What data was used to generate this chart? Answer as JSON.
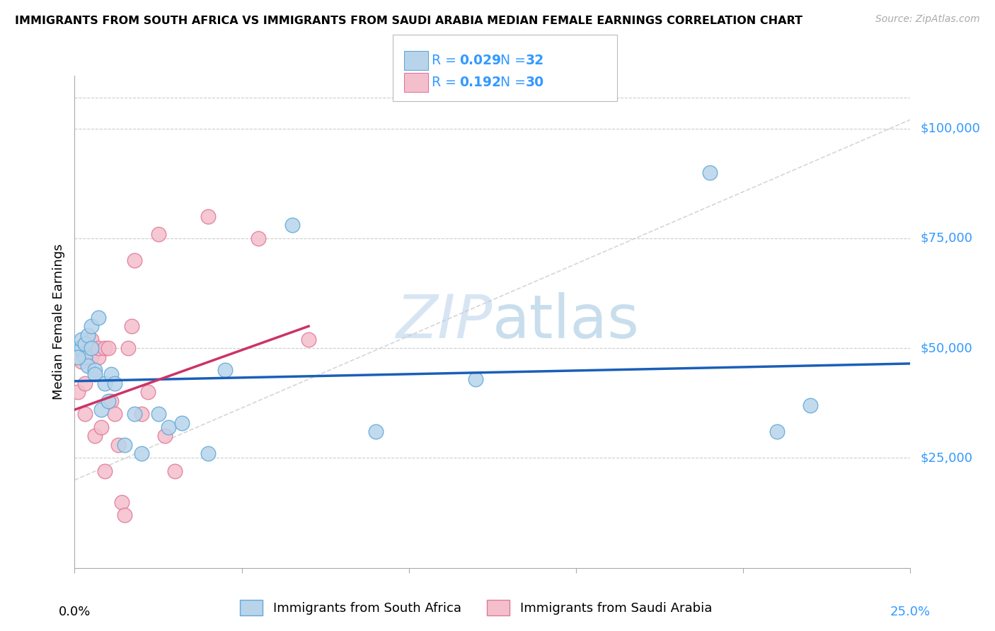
{
  "title": "IMMIGRANTS FROM SOUTH AFRICA VS IMMIGRANTS FROM SAUDI ARABIA MEDIAN FEMALE EARNINGS CORRELATION CHART",
  "source": "Source: ZipAtlas.com",
  "ylabel": "Median Female Earnings",
  "xlim": [
    0.0,
    0.25
  ],
  "ylim": [
    0,
    112000
  ],
  "ytick_values": [
    25000,
    50000,
    75000,
    100000
  ],
  "ytick_labels": [
    "$25,000",
    "$50,000",
    "$75,000",
    "$100,000"
  ],
  "color_sa_fill": "#b8d4ea",
  "color_sa_edge": "#5fa8d8",
  "color_saudi_fill": "#f4bfcc",
  "color_saudi_edge": "#e07898",
  "color_line_sa": "#1a5fb8",
  "color_line_saudi": "#cc3366",
  "color_ref_line": "#cccccc",
  "color_grid": "#cccccc",
  "color_right_labels": "#3399ff",
  "legend_color": "#3399ff",
  "sa_x": [
    0.001,
    0.002,
    0.002,
    0.003,
    0.003,
    0.004,
    0.004,
    0.005,
    0.005,
    0.006,
    0.006,
    0.007,
    0.008,
    0.009,
    0.01,
    0.011,
    0.012,
    0.015,
    0.018,
    0.02,
    0.025,
    0.028,
    0.032,
    0.04,
    0.045,
    0.065,
    0.09,
    0.12,
    0.19,
    0.21,
    0.22,
    0.001
  ],
  "sa_y": [
    50000,
    50000,
    52000,
    48000,
    51000,
    46000,
    53000,
    50000,
    55000,
    45000,
    44000,
    57000,
    36000,
    42000,
    38000,
    44000,
    42000,
    28000,
    35000,
    26000,
    35000,
    32000,
    33000,
    26000,
    45000,
    78000,
    31000,
    43000,
    90000,
    31000,
    37000,
    48000
  ],
  "saudi_x": [
    0.001,
    0.002,
    0.003,
    0.003,
    0.004,
    0.005,
    0.005,
    0.006,
    0.007,
    0.007,
    0.008,
    0.009,
    0.009,
    0.01,
    0.011,
    0.012,
    0.013,
    0.014,
    0.015,
    0.016,
    0.017,
    0.018,
    0.02,
    0.022,
    0.025,
    0.027,
    0.03,
    0.04,
    0.055,
    0.07
  ],
  "saudi_y": [
    40000,
    47000,
    35000,
    42000,
    50000,
    48000,
    52000,
    30000,
    48000,
    50000,
    32000,
    22000,
    50000,
    50000,
    38000,
    35000,
    28000,
    15000,
    12000,
    50000,
    55000,
    70000,
    35000,
    40000,
    76000,
    30000,
    22000,
    80000,
    75000,
    52000
  ],
  "sa_trend_x": [
    0.0,
    0.25
  ],
  "sa_trend_y": [
    42500,
    46500
  ],
  "saudi_trend_x": [
    0.0,
    0.07
  ],
  "saudi_trend_y": [
    36000,
    55000
  ],
  "ref_line_x": [
    0.0,
    0.25
  ],
  "ref_line_y": [
    20000,
    102000
  ]
}
